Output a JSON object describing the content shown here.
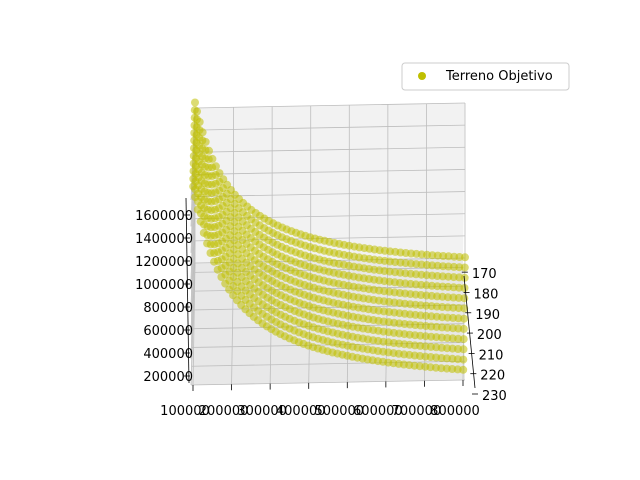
{
  "chart_data": {
    "type": "scatter",
    "projection": "3d",
    "title": "",
    "xlabel": "",
    "ylabel": "",
    "zlabel": "",
    "series": [
      {
        "name": "Terreno Objetivo",
        "color": "#bfbf00",
        "marker": "circle",
        "description_of_values": "surface of points, z decreasing with x (approximately z = k / x)",
        "x_range": [
          100000,
          800000
        ],
        "y_range": [
          165,
          225
        ],
        "z_range": [
          180000,
          1650000
        ]
      }
    ],
    "axes": {
      "x": {
        "range": [
          100000,
          800000
        ],
        "ticks": [
          "100000",
          "200000",
          "300000",
          "400000",
          "500000",
          "600000",
          "700000",
          "800000"
        ]
      },
      "y": {
        "range": [
          165,
          230
        ],
        "ticks": [
          "170",
          "180",
          "190",
          "200",
          "210",
          "220",
          "230"
        ]
      },
      "z": {
        "range": [
          200000,
          1600000
        ],
        "ticks": [
          "200000",
          "400000",
          "600000",
          "800000",
          "1000000",
          "1200000",
          "1400000",
          "1600000"
        ]
      }
    },
    "grid": true,
    "legend": {
      "position": "top-right",
      "entries": [
        "Terreno Objetivo"
      ]
    }
  }
}
